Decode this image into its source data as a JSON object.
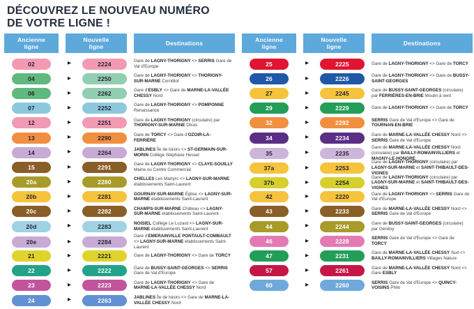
{
  "title": {
    "line1_regular": "DÉCOUVREZ LE ",
    "line1_bold": "NOUVEAU NUMÉRO",
    "line2_bold": "DE VOTRE LIGNE !"
  },
  "columns": {
    "old": "Ancienne\nligne",
    "new": "Nouvelle\nligne",
    "dest": "Destinations"
  },
  "colors": {
    "header_bg": "#5ea9db",
    "title_text": "#232f3e",
    "dark_badge_text": "#20242e",
    "white_badge_text": "#ffffff"
  },
  "icons": {
    "arrow": "▶"
  },
  "tables": [
    {
      "name": "left",
      "rows": [
        {
          "old": "02",
          "new": "2224",
          "color": "#f29ab4",
          "tc": "#20242e",
          "dest": "Gare de **LAGNY-THORIGNY** <> **SERRIS** Gare de Val d'Europe"
        },
        {
          "old": "04",
          "new": "2250",
          "color": "#5fb97e",
          "new_color": "#92ceb2",
          "tc": "#20242e",
          "dest": "Gare de **LAGNY-THORIGNY** <> **THORIGNY-SUR-MARNE** Cornilliot"
        },
        {
          "old": "06",
          "new": "2262",
          "color": "#5fb97e",
          "new_color": "#92ceb2",
          "tc": "#20242e",
          "dest": "Gare d'**ESBLY** <> Gare de **MARNE-LA-VALLÉE CHESSY** Nord"
        },
        {
          "old": "07",
          "new": "2252",
          "color": "#8ec8de",
          "tc": "#20242e",
          "dest": "Gare de **LAGNY-THORIGNY** <> **POMPONNE** Renaissance"
        },
        {
          "old": "12",
          "new": "2251",
          "color": "#f29ab4",
          "tc": "#20242e",
          "dest": "Gare de **LAGNY-THORIGNY** (circulaire) par **THORIGNY-SUR-MARNE** Dhuis"
        },
        {
          "old": "13",
          "new": "2290",
          "color": "#f18f41",
          "tc": "#20242e",
          "dest": "Gare de **TORCY** <> Gare d'**OZOIR-LA-FERRIÈRE**"
        },
        {
          "old": "14",
          "new": "2264",
          "color": "#c8abd5",
          "tc": "#20242e",
          "dest": "**JABLINES** Île de loisirs <> **ST-GERMAIN-SUR-MORIN** Collège Stéphane Hessel"
        },
        {
          "old": "15",
          "new": "2291",
          "color": "#8a5e27",
          "tc": "#ffffff",
          "dest": "Gare de **LAGNY-THORIGNY** <> **CLAYE-SOUILLY** Mairie ou Centre Commercial"
        },
        {
          "old": "20a",
          "new": "2280",
          "color": "#a89b29",
          "tc": "#ffffff",
          "dest": "**CHELLES** Les Martyrs <> **LAGNY-SUR-MARNE** établissements Saint-Laurent"
        },
        {
          "old": "20b",
          "new": "2281",
          "color": "#f5c33c",
          "tc": "#20242e",
          "dest": "**GOURNAY-SUR-MARNE** Église <> **LAGNY-SUR-MARNE** établissements Saint-Laurent"
        },
        {
          "old": "20c",
          "new": "2282",
          "color": "#8a5e27",
          "tc": "#ffffff",
          "dest": "**CHAMPS-SUR-MARNE** Château <> **LAGNY-SUR-MARNE** établissements Saint-Laurent"
        },
        {
          "old": "20d",
          "new": "2283",
          "color": "#9fd2e2",
          "tc": "#20242e",
          "dest": "**NOISIEL** Collège Le Luzard <> **LAGNY-SUR-MARNE** établissements Saint-Laurent"
        },
        {
          "old": "20e",
          "new": "2284",
          "color": "#c8abd5",
          "tc": "#20242e",
          "dest": "Gare d'**EMERAINVILLE PONTAULT-COMBAULT** <> **LAGNY-SUR-MARNE** établissements Saint-Laurent"
        },
        {
          "old": "21",
          "new": "2221",
          "color": "#e0d32b",
          "tc": "#20242e",
          "dest": "Gare de **LAGNY-THORIGNY** <> Gare de **TORCY**"
        },
        {
          "old": "22",
          "new": "2222",
          "color": "#24a289",
          "tc": "#ffffff",
          "dest": "Gare de **BUSSY-SAINT-GEORGES** <> **SERRIS** Gare de Val d'Europe"
        },
        {
          "old": "23",
          "new": "2223",
          "color": "#c2549e",
          "tc": "#ffffff",
          "dest": "Gare de **LAGNY-THORIGNY** <> Gare de **MARNE-LA-VALLÉE CHESSY** Nord"
        },
        {
          "old": "24",
          "new": "2263",
          "color": "#6191d2",
          "tc": "#ffffff",
          "dest": "**JABLINES** Île de loisirs <> Gare de **MARNE-LA-VALLÉE CHESSY** Nord"
        }
      ]
    },
    {
      "name": "right",
      "rows": [
        {
          "old": "25",
          "new": "2225",
          "color": "#e01532",
          "tc": "#ffffff",
          "dest": "Gare de **LAGNY-THORIGNY** <> Gare de **TORCY**"
        },
        {
          "old": "26",
          "new": "2226",
          "color": "#2058a8",
          "tc": "#ffffff",
          "dest": "Gare de **LAGNY-THORIGNY** <> Gare de **BUSSY-SAINT-GEORGES**"
        },
        {
          "old": "27",
          "new": "2245",
          "color": "#f5c33c",
          "tc": "#20242e",
          "dest": "Gare de **BUSSY-SAINT-GEORGES** (circulaire) par **FERRIÈRES-EN-BRIE** Moulin à vent"
        },
        {
          "old": "29",
          "new": "2229",
          "color": "#239e59",
          "tc": "#ffffff",
          "dest": "Gare de **LAGNY-THORIGNY** <> Gare de **TORCY**"
        },
        {
          "old": "32",
          "new": "2292",
          "color": "#f18f41",
          "tc": "#ffffff",
          "dest": "**SERRIS** Gare de Val d'Europe <> Gare de **TOURNAN-EN-BRIE**"
        },
        {
          "old": "34",
          "new": "2234",
          "color": "#5b2e86",
          "tc": "#ffffff",
          "dest": "Gare de **MARNE-LA-VALLÉE CHESSY** Nord <> **SERRIS** Gare de Val d'Europe"
        },
        {
          "old": "35",
          "new": "2235",
          "color": "#cdb6da",
          "tc": "#20242e",
          "dest": "Gare de **MARNE-LA-VALLÉE CHESSY** Nord (circulaire) par **BAILLY-ROMAINVILLIERS** et **MAGNY-LE-HONGRE**"
        },
        {
          "old": "37a",
          "new": "2253",
          "color": "#f5c33c",
          "tc": "#20242e",
          "dest": "Gare de **LAGNY-THORIGNY** (circulaire) par **LAGNY-SUR-MARNE** et **SAINT-THIBAULT-DES-VIGNES**"
        },
        {
          "old": "37b",
          "new": "2254",
          "color": "#d6cf2e",
          "tc": "#20242e",
          "dest": "Gare de **LAGNY-THORIGNY** (circulaire) par **LAGNY-SUR-MARNE** et **SAINT-THIBAULT-DES-VIGNES**"
        },
        {
          "old": "42",
          "new": "2220",
          "color": "#f5c33c",
          "tc": "#20242e",
          "dest": "Gare de **LAGNY-THORIGNY** <> **SERRIS** Gare de Val d'Europe"
        },
        {
          "old": "43",
          "new": "2233",
          "color": "#8a5e27",
          "tc": "#ffffff",
          "dest": "Gare de **MARNE-LA-VALLÉE CHESSY** Nord <> **SERRIS** Gare de Val d'Europe"
        },
        {
          "old": "44",
          "new": "2244",
          "color": "#a89b29",
          "tc": "#ffffff",
          "dest": "Gare de **BUSSY-SAINT-GEORGES** (circulaire) par Génitoy"
        },
        {
          "old": "46",
          "new": "2228",
          "color": "#e47ab3",
          "tc": "#ffffff",
          "dest": "**SERRIS** Gare de Val d'Europe <> Gare de **TORCY**"
        },
        {
          "old": "47",
          "new": "2231",
          "color": "#239e59",
          "tc": "#ffffff",
          "dest": "Gare de **MARNE-LA-VALLÉE CHESSY** Sud <> **BAILLY-ROMAINVILLIERS** Villages Nature"
        },
        {
          "old": "57",
          "new": "2261",
          "color": "#c51747",
          "tc": "#ffffff",
          "dest": "Gare de **MARNE-LA-VALLÉE CHESSY** Nord <> Gare **ESBLY**"
        },
        {
          "old": "60",
          "new": "2260",
          "color": "#6fa9dc",
          "tc": "#ffffff",
          "dest": "**SERRIS** Gare de Val d'Europe <> **QUINCY-VOISINS** Philo"
        }
      ]
    }
  ]
}
